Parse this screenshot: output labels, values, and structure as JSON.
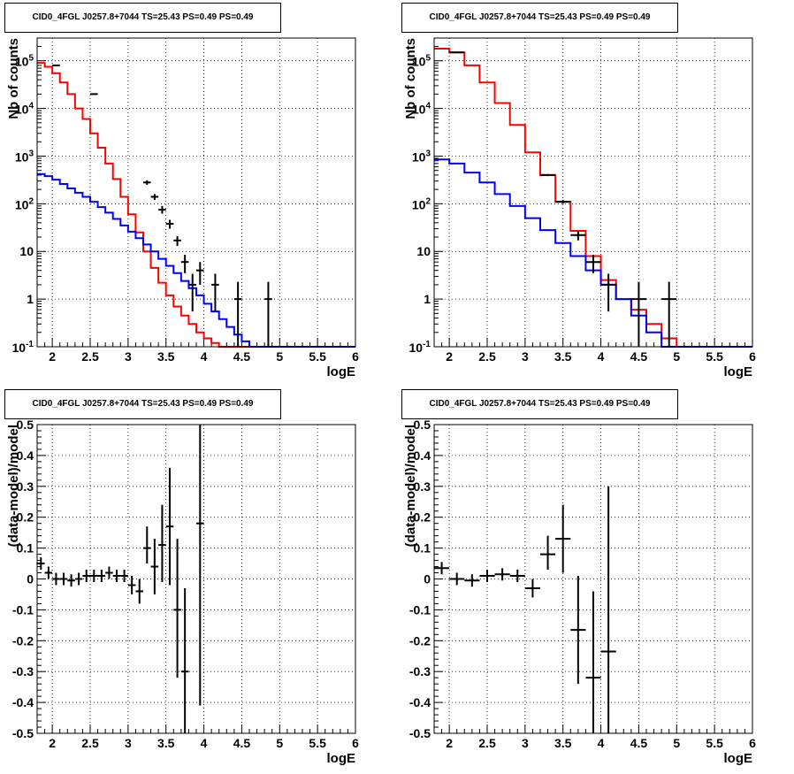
{
  "chart_data": [
    {
      "type": "line",
      "title": "CID0_4FGL J0257.8+7044 TS=25.43 PS=0.49 PS=0.49",
      "xlabel": "logE",
      "ylabel": "Nb of counts",
      "xlim": [
        1.8,
        6
      ],
      "ylim": [
        0.1,
        300000
      ],
      "yscale": "log",
      "grid": true,
      "x_ticks": [
        "2",
        "2.5",
        "3",
        "3.5",
        "4",
        "4.5",
        "5",
        "5.5",
        "6"
      ],
      "y_ticks": [
        "10^-1",
        "1",
        "10",
        "10^2",
        "10^3",
        "10^4",
        "10^5"
      ],
      "series": [
        {
          "color": "#ff0000",
          "style": "step",
          "edges": [
            1.8,
            1.9,
            2.0,
            2.1,
            2.2,
            2.3,
            2.4,
            2.5,
            2.6,
            2.7,
            2.8,
            2.9,
            3.0,
            3.1,
            3.2,
            3.3,
            3.4,
            3.5,
            3.6,
            3.7,
            3.8,
            3.9,
            4.0,
            4.1,
            4.2,
            4.3,
            4.4,
            4.5,
            4.6,
            4.7,
            4.8,
            4.9,
            5.0,
            5.1,
            5.2,
            5.3,
            5.4,
            5.5,
            5.6,
            5.7,
            5.8,
            5.9,
            6.0
          ],
          "values": [
            90000,
            75000,
            55000,
            35000,
            20000,
            10000,
            6000,
            3000,
            1500,
            700,
            330,
            140,
            60,
            25,
            10,
            4.5,
            2.2,
            1.2,
            0.7,
            0.45,
            0.3,
            0.2,
            0.15,
            0.12,
            0.1,
            0.1,
            0.1,
            0.1,
            0.1,
            0.1,
            0.1,
            0.1,
            0.1,
            0.1,
            0.1,
            0.1,
            0.1,
            0.1,
            0.1,
            0.1,
            0.1,
            0.1
          ]
        },
        {
          "color": "#0000ff",
          "style": "step",
          "edges": [
            1.8,
            1.9,
            2.0,
            2.1,
            2.2,
            2.3,
            2.4,
            2.5,
            2.6,
            2.7,
            2.8,
            2.9,
            3.0,
            3.1,
            3.2,
            3.3,
            3.4,
            3.5,
            3.6,
            3.7,
            3.8,
            3.9,
            4.0,
            4.1,
            4.2,
            4.3,
            4.4,
            4.5,
            4.6,
            4.7,
            4.8,
            4.9,
            5.0,
            5.1,
            5.2,
            5.3,
            5.4,
            5.5,
            5.6,
            5.7,
            5.8,
            5.9,
            6.0
          ],
          "values": [
            420,
            380,
            320,
            260,
            210,
            170,
            140,
            110,
            85,
            65,
            48,
            35,
            26,
            19,
            14,
            10,
            7,
            5,
            3.5,
            2.4,
            1.7,
            1.2,
            0.8,
            0.55,
            0.38,
            0.26,
            0.18,
            0.13,
            0.1,
            0.1,
            0.1,
            0.1,
            0.1,
            0.1,
            0.1,
            0.1,
            0.1,
            0.1,
            0.1,
            0.1,
            0.1,
            0.1
          ]
        }
      ],
      "points": [
        {
          "x": 2.05,
          "y": 80000,
          "xerr": 0.05,
          "ylo": 80000,
          "yhi": 80000
        },
        {
          "x": 2.55,
          "y": 20000,
          "xerr": 0.05,
          "ylo": 20000,
          "yhi": 20000
        },
        {
          "x": 3.25,
          "y": 280,
          "xerr": 0.05,
          "ylo": 250,
          "yhi": 310
        },
        {
          "x": 3.35,
          "y": 140,
          "xerr": 0.05,
          "ylo": 120,
          "yhi": 160
        },
        {
          "x": 3.45,
          "y": 75,
          "xerr": 0.05,
          "ylo": 62,
          "yhi": 90
        },
        {
          "x": 3.55,
          "y": 38,
          "xerr": 0.05,
          "ylo": 30,
          "yhi": 46
        },
        {
          "x": 3.65,
          "y": 17,
          "xerr": 0.05,
          "ylo": 13,
          "yhi": 21
        },
        {
          "x": 3.75,
          "y": 6,
          "xerr": 0.05,
          "ylo": 3.5,
          "yhi": 8.5
        },
        {
          "x": 3.85,
          "y": 2,
          "xerr": 0.05,
          "ylo": 0.55,
          "yhi": 3.4
        },
        {
          "x": 3.95,
          "y": 4,
          "xerr": 0.05,
          "ylo": 2,
          "yhi": 6
        },
        {
          "x": 4.15,
          "y": 2,
          "xerr": 0.05,
          "ylo": 0.55,
          "yhi": 3.4
        },
        {
          "x": 4.45,
          "y": 1,
          "xerr": 0.05,
          "ylo": 0.1,
          "yhi": 2.3
        },
        {
          "x": 4.85,
          "y": 1,
          "xerr": 0.05,
          "ylo": 0.1,
          "yhi": 2.3
        }
      ]
    },
    {
      "type": "line",
      "title": "CID0_4FGL J0257.8+7044 TS=25.43 PS=0.49 PS=0.49",
      "xlabel": "logE",
      "ylabel": "Nb of counts",
      "xlim": [
        1.8,
        6
      ],
      "ylim": [
        0.1,
        300000
      ],
      "yscale": "log",
      "grid": true,
      "x_ticks": [
        "2",
        "2.5",
        "3",
        "3.5",
        "4",
        "4.5",
        "5",
        "5.5",
        "6"
      ],
      "y_ticks": [
        "10^-1",
        "1",
        "10",
        "10^2",
        "10^3",
        "10^4",
        "10^5"
      ],
      "series": [
        {
          "color": "#ff0000",
          "style": "step",
          "edges": [
            1.8,
            2.0,
            2.2,
            2.4,
            2.6,
            2.8,
            3.0,
            3.2,
            3.4,
            3.6,
            3.8,
            4.0,
            4.2,
            4.4,
            4.6,
            4.8,
            5.0,
            5.2,
            5.4,
            5.6,
            5.8,
            6.0
          ],
          "values": [
            180000,
            150000,
            80000,
            35000,
            13000,
            4500,
            1200,
            400,
            110,
            27,
            8,
            2.5,
            1,
            0.6,
            0.3,
            0.15,
            0.1,
            0.1,
            0.1,
            0.1,
            0.1
          ]
        },
        {
          "color": "#0000ff",
          "style": "step",
          "edges": [
            1.8,
            2.0,
            2.2,
            2.4,
            2.6,
            2.8,
            3.0,
            3.2,
            3.4,
            3.6,
            3.8,
            4.0,
            4.2,
            4.4,
            4.6,
            4.8,
            5.0,
            5.2,
            5.4,
            5.6,
            5.8,
            6.0
          ],
          "values": [
            850,
            700,
            450,
            280,
            160,
            90,
            50,
            28,
            15,
            8,
            4,
            2,
            1,
            0.45,
            0.2,
            0.1,
            0.1,
            0.1,
            0.1,
            0.1,
            0.1
          ]
        }
      ],
      "points": [
        {
          "x": 2.1,
          "y": 150000,
          "xerr": 0.1,
          "ylo": 150000,
          "yhi": 150000
        },
        {
          "x": 3.3,
          "y": 400,
          "xerr": 0.1,
          "ylo": 380,
          "yhi": 420
        },
        {
          "x": 3.5,
          "y": 110,
          "xerr": 0.1,
          "ylo": 100,
          "yhi": 120
        },
        {
          "x": 3.7,
          "y": 22,
          "xerr": 0.1,
          "ylo": 17,
          "yhi": 27
        },
        {
          "x": 3.9,
          "y": 6,
          "xerr": 0.1,
          "ylo": 3.5,
          "yhi": 8.5
        },
        {
          "x": 4.1,
          "y": 2,
          "xerr": 0.1,
          "ylo": 0.55,
          "yhi": 3.4
        },
        {
          "x": 4.5,
          "y": 1,
          "xerr": 0.1,
          "ylo": 0.1,
          "yhi": 2.3
        },
        {
          "x": 4.9,
          "y": 1,
          "xerr": 0.1,
          "ylo": 0.1,
          "yhi": 2.3
        }
      ]
    },
    {
      "type": "scatter",
      "title": "CID0_4FGL J0257.8+7044 TS=25.43 PS=0.49 PS=0.49",
      "xlabel": "logE",
      "ylabel": "(data-model)/model",
      "xlim": [
        1.8,
        6
      ],
      "ylim": [
        -0.5,
        0.5
      ],
      "yscale": "linear",
      "grid": true,
      "x_ticks": [
        "2",
        "2.5",
        "3",
        "3.5",
        "4",
        "4.5",
        "5",
        "5.5",
        "6"
      ],
      "y_ticks": [
        "-0.5",
        "-0.4",
        "-0.3",
        "-0.2",
        "-0.1",
        "0",
        "0.1",
        "0.2",
        "0.3",
        "0.4",
        "0.5"
      ],
      "series": [],
      "points": [
        {
          "x": 1.85,
          "y": 0.05,
          "xerr": 0.05,
          "ylo": 0.03,
          "yhi": 0.07
        },
        {
          "x": 1.95,
          "y": 0.02,
          "xerr": 0.05,
          "ylo": 0.0,
          "yhi": 0.04
        },
        {
          "x": 2.05,
          "y": 0.0,
          "xerr": 0.05,
          "ylo": -0.02,
          "yhi": 0.02
        },
        {
          "x": 2.15,
          "y": 0.0,
          "xerr": 0.05,
          "ylo": -0.02,
          "yhi": 0.02
        },
        {
          "x": 2.25,
          "y": -0.005,
          "xerr": 0.05,
          "ylo": -0.025,
          "yhi": 0.015
        },
        {
          "x": 2.35,
          "y": 0.0,
          "xerr": 0.05,
          "ylo": -0.02,
          "yhi": 0.02
        },
        {
          "x": 2.45,
          "y": 0.01,
          "xerr": 0.05,
          "ylo": -0.01,
          "yhi": 0.03
        },
        {
          "x": 2.55,
          "y": 0.01,
          "xerr": 0.05,
          "ylo": -0.01,
          "yhi": 0.03
        },
        {
          "x": 2.65,
          "y": 0.01,
          "xerr": 0.05,
          "ylo": -0.01,
          "yhi": 0.03
        },
        {
          "x": 2.75,
          "y": 0.02,
          "xerr": 0.05,
          "ylo": 0.0,
          "yhi": 0.04
        },
        {
          "x": 2.85,
          "y": 0.01,
          "xerr": 0.05,
          "ylo": -0.01,
          "yhi": 0.03
        },
        {
          "x": 2.95,
          "y": 0.01,
          "xerr": 0.05,
          "ylo": -0.01,
          "yhi": 0.03
        },
        {
          "x": 3.05,
          "y": -0.02,
          "xerr": 0.05,
          "ylo": -0.05,
          "yhi": 0.01
        },
        {
          "x": 3.15,
          "y": -0.04,
          "xerr": 0.05,
          "ylo": -0.08,
          "yhi": 0.0
        },
        {
          "x": 3.25,
          "y": 0.1,
          "xerr": 0.05,
          "ylo": 0.05,
          "yhi": 0.17
        },
        {
          "x": 3.35,
          "y": 0.04,
          "xerr": 0.05,
          "ylo": -0.05,
          "yhi": 0.13
        },
        {
          "x": 3.45,
          "y": 0.11,
          "xerr": 0.05,
          "ylo": -0.01,
          "yhi": 0.24
        },
        {
          "x": 3.55,
          "y": 0.17,
          "xerr": 0.05,
          "ylo": -0.02,
          "yhi": 0.36
        },
        {
          "x": 3.65,
          "y": -0.1,
          "xerr": 0.05,
          "ylo": -0.32,
          "yhi": 0.13
        },
        {
          "x": 3.75,
          "y": -0.3,
          "xerr": 0.05,
          "ylo": -0.5,
          "yhi": -0.03
        },
        {
          "x": 3.95,
          "y": 0.18,
          "xerr": 0.05,
          "ylo": -0.41,
          "yhi": 0.5
        }
      ]
    },
    {
      "type": "scatter",
      "title": "CID0_4FGL J0257.8+7044 TS=25.43 PS=0.49 PS=0.49",
      "xlabel": "logE",
      "ylabel": "(data-model)/model",
      "xlim": [
        1.8,
        6
      ],
      "ylim": [
        -0.5,
        0.5
      ],
      "yscale": "linear",
      "grid": true,
      "x_ticks": [
        "2",
        "2.5",
        "3",
        "3.5",
        "4",
        "4.5",
        "5",
        "5.5",
        "6"
      ],
      "y_ticks": [
        "-0.5",
        "-0.4",
        "-0.3",
        "-0.2",
        "-0.1",
        "0",
        "0.1",
        "0.2",
        "0.3",
        "0.4",
        "0.5"
      ],
      "series": [],
      "points": [
        {
          "x": 1.9,
          "y": 0.035,
          "xerr": 0.1,
          "ylo": 0.015,
          "yhi": 0.055
        },
        {
          "x": 2.1,
          "y": 0.0,
          "xerr": 0.1,
          "ylo": -0.02,
          "yhi": 0.02
        },
        {
          "x": 2.3,
          "y": -0.005,
          "xerr": 0.1,
          "ylo": -0.025,
          "yhi": 0.015
        },
        {
          "x": 2.5,
          "y": 0.01,
          "xerr": 0.1,
          "ylo": -0.01,
          "yhi": 0.03
        },
        {
          "x": 2.7,
          "y": 0.015,
          "xerr": 0.1,
          "ylo": -0.005,
          "yhi": 0.035
        },
        {
          "x": 2.9,
          "y": 0.01,
          "xerr": 0.1,
          "ylo": -0.01,
          "yhi": 0.03
        },
        {
          "x": 3.1,
          "y": -0.03,
          "xerr": 0.1,
          "ylo": -0.06,
          "yhi": 0.0
        },
        {
          "x": 3.3,
          "y": 0.08,
          "xerr": 0.1,
          "ylo": 0.03,
          "yhi": 0.14
        },
        {
          "x": 3.5,
          "y": 0.13,
          "xerr": 0.1,
          "ylo": 0.02,
          "yhi": 0.24
        },
        {
          "x": 3.7,
          "y": -0.165,
          "xerr": 0.1,
          "ylo": -0.34,
          "yhi": 0.01
        },
        {
          "x": 3.9,
          "y": -0.32,
          "xerr": 0.1,
          "ylo": -0.5,
          "yhi": -0.04
        },
        {
          "x": 4.1,
          "y": -0.235,
          "xerr": 0.1,
          "ylo": -0.5,
          "yhi": 0.3
        }
      ]
    }
  ]
}
